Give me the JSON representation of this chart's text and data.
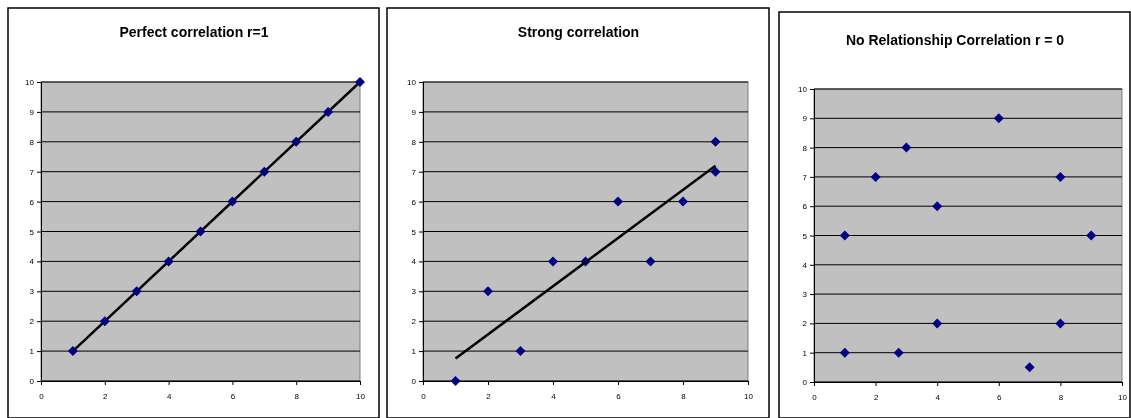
{
  "chart_data": [
    {
      "type": "scatter",
      "title": "Perfect correlation r=1",
      "xlim": [
        0,
        10
      ],
      "ylim": [
        0,
        10
      ],
      "xticks": [
        0,
        2,
        4,
        6,
        8,
        10
      ],
      "yticks": [
        0,
        1,
        2,
        3,
        4,
        5,
        6,
        7,
        8,
        9,
        10
      ],
      "grid": "y",
      "marker": "diamond",
      "series": [
        {
          "type": "line",
          "color": "#000000",
          "x": [
            1,
            10
          ],
          "values": [
            1,
            10
          ],
          "marker": "none"
        },
        {
          "color": "#000080",
          "x": [
            1,
            2,
            3,
            4,
            5,
            6,
            7,
            8,
            9,
            10
          ],
          "values": [
            1,
            2,
            3,
            4,
            5,
            6,
            7,
            8,
            9,
            10
          ]
        }
      ]
    },
    {
      "type": "scatter",
      "title": "Strong correlation",
      "xlim": [
        0,
        10
      ],
      "ylim": [
        0,
        10
      ],
      "xticks": [
        0,
        2,
        4,
        6,
        8,
        10
      ],
      "yticks": [
        0,
        1,
        2,
        3,
        4,
        5,
        6,
        7,
        8,
        9,
        10
      ],
      "grid": "y",
      "marker": "diamond",
      "series": [
        {
          "color": "#000080",
          "x": [
            1,
            2,
            3,
            4,
            5,
            6,
            7,
            8,
            9,
            9
          ],
          "values": [
            0,
            3,
            1,
            4,
            4,
            6,
            4,
            6,
            7,
            8
          ]
        },
        {
          "type": "line",
          "color": "#000000",
          "x": [
            1,
            9
          ],
          "values": [
            0.75,
            7.2
          ],
          "marker": "none"
        }
      ]
    },
    {
      "type": "scatter",
      "title": "No Relationship Correlation r = 0",
      "xlim": [
        0,
        10
      ],
      "ylim": [
        0,
        10
      ],
      "xticks": [
        0,
        2,
        4,
        6,
        8,
        10
      ],
      "yticks": [
        0,
        1,
        2,
        3,
        4,
        5,
        6,
        7,
        8,
        9,
        10
      ],
      "grid": "y",
      "marker": "diamond",
      "series": [
        {
          "color": "#000080",
          "x": [
            1,
            1,
            2,
            2.75,
            3,
            4,
            4,
            6,
            7,
            8,
            8,
            9
          ],
          "values": [
            5,
            1,
            7,
            1,
            8,
            6,
            2,
            9,
            0.5,
            7,
            2,
            5
          ]
        }
      ]
    }
  ]
}
